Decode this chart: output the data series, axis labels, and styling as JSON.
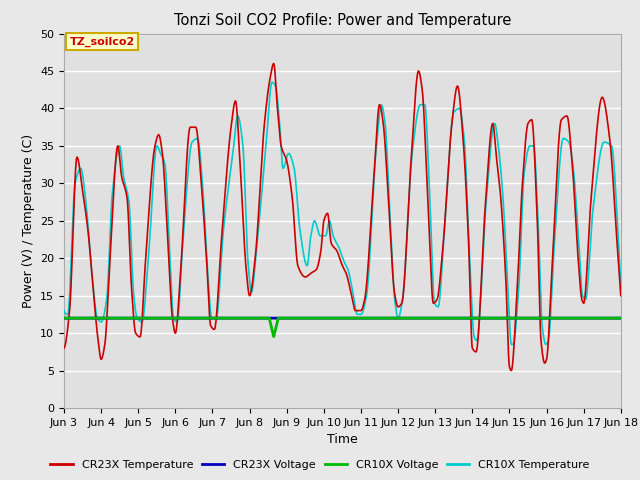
{
  "title": "Tonzi Soil CO2 Profile: Power and Temperature",
  "xlabel": "Time",
  "ylabel": "Power (V) / Temperature (C)",
  "ylim": [
    0,
    50
  ],
  "xlim_days": [
    3,
    18
  ],
  "fig_facecolor": "#e8e8e8",
  "ax_facecolor": "#e0e0e0",
  "grid_color": "#ffffff",
  "annotation_text": "TZ_soilco2",
  "annotation_bg": "#ffffcc",
  "annotation_border": "#ccaa00",
  "cr23x_temp_color": "#cc0000",
  "cr23x_volt_color": "#0000bb",
  "cr10x_volt_color": "#00bb00",
  "cr10x_temp_color": "#00cccc",
  "legend_labels": [
    "CR23X Temperature",
    "CR23X Voltage",
    "CR10X Voltage",
    "CR10X Temperature"
  ],
  "legend_colors": [
    "#cc0000",
    "#0000bb",
    "#00bb00",
    "#00cccc"
  ],
  "xtick_labels": [
    "Jun 3",
    "Jun 4",
    "Jun 5",
    "Jun 6",
    "Jun 7",
    "Jun 8",
    "Jun 9",
    "Jun 10",
    "Jun 11",
    "Jun 12",
    "Jun 13",
    "Jun 14",
    "Jun 15",
    "Jun 16",
    "Jun 17",
    "Jun 18"
  ],
  "xtick_positions": [
    3,
    4,
    5,
    6,
    7,
    8,
    9,
    10,
    11,
    12,
    13,
    14,
    15,
    16,
    17,
    18
  ],
  "ytick_positions": [
    0,
    5,
    10,
    15,
    20,
    25,
    30,
    35,
    40,
    45,
    50
  ],
  "cr23x_voltage_level": 12.0,
  "cr10x_voltage_level": 12.0,
  "cr10x_voltage_spike_x": 8.65,
  "cr10x_voltage_spike_y": 9.5,
  "linewidth_temp": 1.2,
  "linewidth_volt": 2.0
}
